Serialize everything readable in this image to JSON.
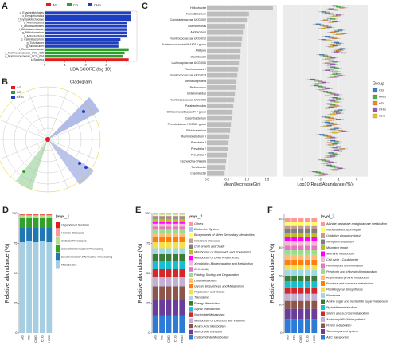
{
  "chart_data": [
    {
      "type": "hbar",
      "label": "A",
      "legend": [
        {
          "name": "AG",
          "color": "#e41a1c"
        },
        {
          "name": "CG",
          "color": "#2ca02c"
        },
        {
          "name": "CHG",
          "color": "#1f3fbf"
        }
      ],
      "categories": [
        "o_Erysipelotrichales",
        "c_Erysipelotrichia",
        "f_Erysipelotrichaceae",
        "c_Actinobacteria",
        "o_Bifidobacteriales",
        "f_Bifidobacteriaceae",
        "g_Bifidobacterium",
        "p_Actinobacteria",
        "g_Catenibacterium",
        "g_Turicibacter",
        "g_Allobaculum",
        "f_Ruminococcaceae",
        "g_Ruminococcaceae_UCG_005",
        "g_Ruminococcaceae_UCG_014",
        "k_Bacteria"
      ],
      "values": [
        4.2,
        4.2,
        4.2,
        4.0,
        4.0,
        4.0,
        4.0,
        4.0,
        3.7,
        3.6,
        3.6,
        4.1,
        3.9,
        3.8,
        4.1
      ],
      "bar_groups": [
        "CHG",
        "CHG",
        "CHG",
        "CHG",
        "CHG",
        "CHG",
        "CHG",
        "CHG",
        "CHG",
        "CHG",
        "CHG",
        "CG",
        "CG",
        "CG",
        "AG"
      ],
      "xlabel": "LDA SCORE (log 10)",
      "xlim": [
        0,
        4.5
      ],
      "xticks": [
        0,
        1,
        2,
        3,
        4
      ]
    },
    {
      "type": "cladogram",
      "label": "B",
      "title": "Cladogram",
      "legend": [
        {
          "name": "AG",
          "color": "#e41a1c"
        },
        {
          "name": "CG",
          "color": "#2ca02c"
        },
        {
          "name": "CHG",
          "color": "#1f3fbf"
        }
      ]
    },
    {
      "type": "rf",
      "label": "C",
      "categories": [
        "Helicobacter",
        "Faecalibaculum",
        "Coriobacteriaceae UCG-002",
        "Butyricimonas",
        "Allobaculum",
        "Ruminococcaceae UCG-010",
        "Ruminococcaceae NK4A214 group",
        "Alistipes",
        "Oscillibacter",
        "Lachnospiraceae UCG-006",
        "Ruminococcus 2",
        "Ruminococcaceae UCG-014",
        "Methanosphaera",
        "Pediococcus",
        "Enterorhabdus",
        "Ruminococcaceae UCG-005",
        "Parabacteroides",
        "Christensenellaceae R-7 group",
        "Catenibacterium",
        "Prevotellaceae NK3B31 group",
        "Bifidobacterium",
        "Ruminiclostridium 6",
        "Prevotella 9",
        "Prevotella 2",
        "Prevotella 7",
        "Escherichia-Shigella",
        "Turicibacter",
        "Coprobacter"
      ],
      "values": [
        1.65,
        1.05,
        1.0,
        0.95,
        0.9,
        0.88,
        0.86,
        0.84,
        0.82,
        0.8,
        0.78,
        0.76,
        0.74,
        0.72,
        0.7,
        0.68,
        0.66,
        0.64,
        0.62,
        0.6,
        0.58,
        0.56,
        0.54,
        0.52,
        0.5,
        0.48,
        0.46,
        0.44
      ],
      "xlabel": "MeanDecreaseGini",
      "xlim": [
        0,
        1.75
      ],
      "xticks": [
        {
          "value": 0,
          "label": "0.0"
        },
        0.5,
        {
          "value": 1,
          "label": "1.0"
        },
        1.5
      ],
      "box": {
        "xlabel": "Log10(Read Abundance (%))",
        "xlim": [
          -4,
          0.6
        ],
        "xticks": [
          -3,
          -2,
          -1,
          0
        ],
        "legend_title": "Group",
        "series": [
          {
            "name": "CG",
            "color": "#3b7dc4",
            "values": [
              -1.2,
              -1.8,
              -1.5,
              -2.1,
              -0.9,
              -1.6,
              -1.1,
              -0.8,
              -1.9,
              -1.4,
              -1.3,
              -1.0,
              -2.4,
              -2.2,
              -1.7,
              -1.2,
              -1.5,
              -0.9,
              -1.8,
              -1.6,
              -1.1,
              -1.9,
              -1.3,
              -1.0,
              -1.4,
              -2.0,
              -1.5,
              -2.3
            ]
          },
          {
            "name": "HNG",
            "color": "#4daf4a",
            "values": [
              -1.0,
              -1.6,
              -1.3,
              -1.9,
              -1.1,
              -1.4,
              -1.0,
              -0.9,
              -1.7,
              -1.2,
              -1.1,
              -1.2,
              -2.2,
              -2.0,
              -1.5,
              -1.0,
              -1.3,
              -1.1,
              -1.6,
              -1.4,
              -1.3,
              -1.7,
              -1.1,
              -1.2,
              -1.2,
              -1.8,
              -1.3,
              -2.1
            ]
          },
          {
            "name": "AG",
            "color": "#f08a24",
            "values": [
              -0.8,
              -1.4,
              -1.7,
              -1.7,
              -1.3,
              -1.2,
              -1.3,
              -1.0,
              -1.5,
              -1.6,
              -1.4,
              -0.9,
              -2.0,
              -1.8,
              -1.3,
              -1.4,
              -1.1,
              -1.2,
              -1.4,
              -1.2,
              -0.9,
              -1.5,
              -1.5,
              -0.8,
              -1.6,
              -1.6,
              -1.1,
              -1.9
            ]
          },
          {
            "name": "CHG",
            "color": "#9b59b6",
            "values": [
              -1.4,
              -1.0,
              -1.2,
              -1.5,
              -0.7,
              -1.8,
              -1.2,
              -1.1,
              -1.3,
              -1.3,
              -1.6,
              -1.1,
              -1.8,
              -1.6,
              -1.1,
              -1.3,
              -1.4,
              -1.0,
              -1.0,
              -1.5,
              -0.7,
              -1.3,
              -1.2,
              -1.1,
              -1.3,
              -1.4,
              -0.9,
              -1.7
            ]
          },
          {
            "name": "CLG",
            "color": "#e6c229",
            "values": [
              -1.1,
              -1.2,
              -1.4,
              -1.8,
              -1.0,
              -1.5,
              -1.4,
              -0.7,
              -1.6,
              -1.5,
              -1.2,
              -1.3,
              -2.1,
              -1.9,
              -1.6,
              -1.1,
              -1.6,
              -1.3,
              -1.5,
              -1.7,
              -1.2,
              -1.6,
              -1.4,
              -0.9,
              -1.5,
              -1.7,
              -1.2,
              -2.0
            ]
          }
        ]
      }
    },
    {
      "type": "stacked",
      "label": "D",
      "categories": [
        "AG",
        "CG",
        "CHG",
        "CLG",
        "HNG"
      ],
      "ylabel": "Relative abundance (%)",
      "ylim": [
        0,
        100
      ],
      "yticks": [
        0,
        25,
        50,
        75,
        100
      ],
      "legend_title": "level_1",
      "series": [
        {
          "name": "Metabolism",
          "color": "#a6cee3",
          "values": [
            76,
            77,
            76,
            77,
            76
          ]
        },
        {
          "name": "Environmental Information Processing",
          "color": "#1f78b4",
          "values": [
            12,
            11,
            12,
            11,
            12
          ]
        },
        {
          "name": "Genetic Information Processing",
          "color": "#33a02c",
          "values": [
            8,
            8,
            8,
            8,
            8
          ]
        },
        {
          "name": "Cellular Processes",
          "color": "#b2df8a",
          "values": [
            2,
            2,
            2,
            2,
            2
          ]
        },
        {
          "name": "Human Diseases",
          "color": "#fb9a99",
          "values": [
            1,
            1,
            1,
            1,
            1
          ]
        },
        {
          "name": "Organismal Systems",
          "color": "#e31a1c",
          "values": [
            1,
            1,
            1,
            1,
            1
          ]
        }
      ]
    },
    {
      "type": "stacked",
      "label": "E",
      "categories": [
        "AG",
        "CG",
        "CHG",
        "CLG",
        "HNG"
      ],
      "ylabel": "Relative abundance (%)",
      "ylim": [
        0,
        100
      ],
      "yticks": [
        0,
        25,
        50,
        75,
        100
      ],
      "legend_title": "level_2",
      "series": [
        {
          "name": "Carbohydrate Metabolism",
          "color": "#2c7bd6",
          "values": [
            15,
            15,
            15,
            15,
            15
          ]
        },
        {
          "name": "Membrane Transport",
          "color": "#6a3d9a",
          "values": [
            13,
            13,
            13,
            13,
            13
          ]
        },
        {
          "name": "Amino Acid Metabolism",
          "color": "#8c564b",
          "values": [
            11,
            11,
            11,
            11,
            11
          ]
        },
        {
          "name": "Metabolism of Cofactors and Vitamins",
          "color": "#c5b0d5",
          "values": [
            8,
            8,
            8,
            8,
            8
          ]
        },
        {
          "name": "Nucleotide Metabolism",
          "color": "#d62728",
          "values": [
            7,
            7,
            7,
            7,
            7
          ]
        },
        {
          "name": "Signal Transduction",
          "color": "#17becf",
          "values": [
            6,
            6,
            6,
            6,
            6
          ]
        },
        {
          "name": "Energy Metabolism",
          "color": "#3a7d3a",
          "values": [
            6,
            6,
            6,
            6,
            6
          ]
        },
        {
          "name": "Translation",
          "color": "#9edae5",
          "values": [
            5,
            5,
            5,
            5,
            5
          ]
        },
        {
          "name": "Replication and Repair",
          "color": "#f4e04d",
          "values": [
            5,
            5,
            5,
            5,
            5
          ]
        },
        {
          "name": "Glycan Biosynthesis and Metabolism",
          "color": "#ff7f0e",
          "values": [
            4,
            4,
            4,
            4,
            4
          ]
        },
        {
          "name": "Lipid Metabolism",
          "color": "#ffbb78",
          "values": [
            3.5,
            3.5,
            3.5,
            3.5,
            3.5
          ]
        },
        {
          "name": "Folding, Sorting and Degradation",
          "color": "#98df8a",
          "values": [
            3,
            3,
            3,
            3,
            3
          ]
        },
        {
          "name": "Cell Motility",
          "color": "#e377c2",
          "values": [
            2.5,
            2.5,
            2.5,
            2.5,
            2.5
          ]
        },
        {
          "name": "Xenobiotics Biodegradation and Metabolism",
          "color": "#f7b6d2",
          "values": [
            2.5,
            2.5,
            2.5,
            2.5,
            2.5
          ]
        },
        {
          "name": "Metabolism of Other Amino Acids",
          "color": "#ff00ff",
          "values": [
            2,
            2,
            2,
            2,
            2
          ]
        },
        {
          "name": "Metabolism of Terpenoids and Polyketides",
          "color": "#bcbd22",
          "values": [
            2,
            2,
            2,
            2,
            2
          ]
        },
        {
          "name": "Cell Growth and Death",
          "color": "#7f7f7f",
          "values": [
            1.5,
            1.5,
            1.5,
            1.5,
            1.5
          ]
        },
        {
          "name": "Infectious Diseases",
          "color": "#c49c94",
          "values": [
            1,
            1,
            1,
            1,
            1
          ]
        },
        {
          "name": "Biosynthesis of Other Secondary Metabolites",
          "color": "#ffff66",
          "values": [
            1,
            1,
            1,
            1,
            1
          ]
        },
        {
          "name": "Endocrine System",
          "color": "#aec7e8",
          "values": [
            1,
            1,
            1,
            1,
            1
          ]
        },
        {
          "name": "Others",
          "color": "#ff9896",
          "values": [
            0.5,
            0.5,
            0.5,
            0.5,
            0.5
          ]
        }
      ]
    },
    {
      "type": "stacked",
      "label": "F",
      "categories": [
        "AG",
        "CG",
        "CHG",
        "CLG",
        "HNG"
      ],
      "ylabel": "Relative abundance (%)",
      "ylim": [
        0,
        42
      ],
      "yticks": [
        0,
        10,
        20,
        30,
        40
      ],
      "legend_title": "level_3",
      "series": [
        {
          "name": "ABC transporters",
          "color": "#2c7bd6",
          "values": [
            5,
            5,
            5,
            5,
            5
          ]
        },
        {
          "name": "Two-component system",
          "color": "#6a3d9a",
          "values": [
            3.5,
            3.5,
            3.5,
            3.5,
            3.5
          ]
        },
        {
          "name": "Purine metabolism",
          "color": "#8c564b",
          "values": [
            2.8,
            2.8,
            2.8,
            2.8,
            2.8
          ]
        },
        {
          "name": "Aminoacyl-tRNA biosynthesis",
          "color": "#c5b0d5",
          "values": [
            2.5,
            2.5,
            2.5,
            2.5,
            2.5
          ]
        },
        {
          "name": "Starch and sucrose metabolism",
          "color": "#d62728",
          "values": [
            2.2,
            2.2,
            2.2,
            2.2,
            2.2
          ]
        },
        {
          "name": "Pyrimidine metabolism",
          "color": "#17becf",
          "values": [
            2.2,
            2.2,
            2.2,
            2.2,
            2.2
          ]
        },
        {
          "name": "Amino sugar and nucleotide sugar metabolism",
          "color": "#3a7d3a",
          "values": [
            2,
            2,
            2,
            2,
            2
          ]
        },
        {
          "name": "Ribosome",
          "color": "#9edae5",
          "values": [
            2,
            2,
            2,
            2,
            2
          ]
        },
        {
          "name": "Peptidoglycan biosynthesis",
          "color": "#f4e04d",
          "values": [
            1.8,
            1.8,
            1.8,
            1.8,
            1.8
          ]
        },
        {
          "name": "Fructose and mannose metabolism",
          "color": "#ff7f0e",
          "values": [
            1.8,
            1.8,
            1.8,
            1.8,
            1.8
          ]
        },
        {
          "name": "Arginine and proline metabolism",
          "color": "#ffbb78",
          "values": [
            1.7,
            1.7,
            1.7,
            1.7,
            1.7
          ]
        },
        {
          "name": "Porphyrin and chlorophyll metabolism",
          "color": "#98df8a",
          "values": [
            1.6,
            1.6,
            1.6,
            1.6,
            1.6
          ]
        },
        {
          "name": "Homologous recombination",
          "color": "#e377c2",
          "values": [
            1.6,
            1.6,
            1.6,
            1.6,
            1.6
          ]
        },
        {
          "name": "Cell cycle - Caulobacter",
          "color": "#f7b6d2",
          "values": [
            1.5,
            1.5,
            1.5,
            1.5,
            1.5
          ]
        },
        {
          "name": "Methane metabolism",
          "color": "#ff00ff",
          "values": [
            1.5,
            1.5,
            1.5,
            1.5,
            1.5
          ]
        },
        {
          "name": "Mismatch repair",
          "color": "#bcbd22",
          "values": [
            1.4,
            1.4,
            1.4,
            1.4,
            1.4
          ]
        },
        {
          "name": "Nitrogen metabolism",
          "color": "#7f7f7f",
          "values": [
            1.4,
            1.4,
            1.4,
            1.4,
            1.4
          ]
        },
        {
          "name": "Oxidative phosphorylation",
          "color": "#c49c94",
          "values": [
            1.4,
            1.4,
            1.4,
            1.4,
            1.4
          ]
        },
        {
          "name": "Nucleotide excision repair",
          "color": "#ffff66",
          "values": [
            1.3,
            1.3,
            1.3,
            1.3,
            1.3
          ]
        },
        {
          "name": "Alanine, aspartate and glutamate metabolism",
          "color": "#ff9896",
          "values": [
            1.3,
            1.3,
            1.3,
            1.3,
            1.3
          ]
        }
      ]
    }
  ]
}
